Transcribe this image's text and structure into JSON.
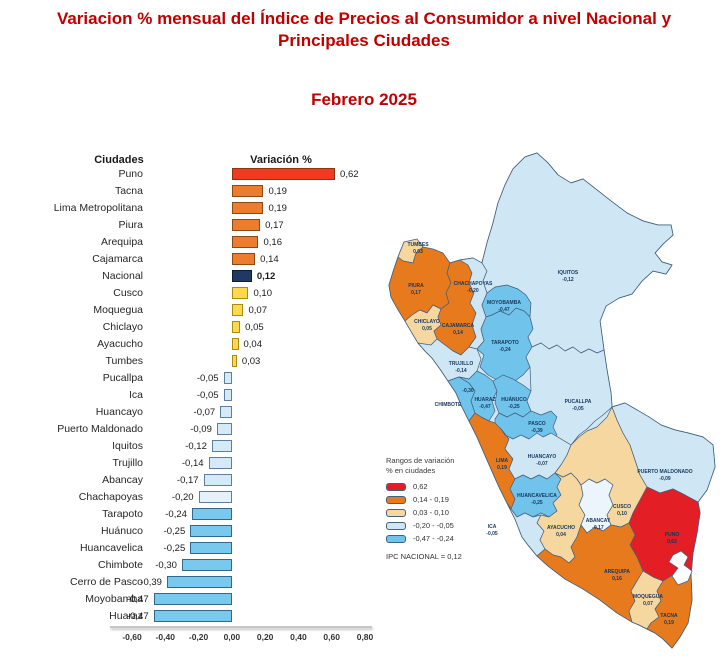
{
  "title": {
    "line1": "Variacion % mensual del Índice de Precios al Consumidor a nivel Nacional y",
    "line2": "Principales Ciudades",
    "subtitle": "Febrero 2025"
  },
  "chart_data": {
    "type": "bar",
    "orientation": "horizontal",
    "title": "Variacion % mensual del Índice de Precios al Consumidor a nivel Nacional y Principales Ciudades — Febrero 2025",
    "col_city_header": "Ciudades",
    "col_value_header": "Variación %",
    "xlim": [
      -0.6,
      0.8
    ],
    "x_ticks": [
      "-0,60",
      "-0,40",
      "-0,20",
      "0,00",
      "0,20",
      "0,40",
      "0,60",
      "0,80"
    ],
    "grid": false,
    "rows": [
      {
        "label": "Puno",
        "value": 0.62,
        "display": "0,62",
        "color": "red",
        "bold": false
      },
      {
        "label": "Tacna",
        "value": 0.19,
        "display": "0,19",
        "color": "orange",
        "bold": false
      },
      {
        "label": "Lima Metropolitana",
        "value": 0.19,
        "display": "0,19",
        "color": "orange",
        "bold": false
      },
      {
        "label": "Piura",
        "value": 0.17,
        "display": "0,17",
        "color": "orange",
        "bold": false
      },
      {
        "label": "Arequipa",
        "value": 0.16,
        "display": "0,16",
        "color": "orange",
        "bold": false
      },
      {
        "label": "Cajamarca",
        "value": 0.14,
        "display": "0,14",
        "color": "orange",
        "bold": false
      },
      {
        "label": "Nacional",
        "value": 0.12,
        "display": "0,12",
        "color": "navy",
        "bold": true
      },
      {
        "label": "Cusco",
        "value": 0.1,
        "display": "0,10",
        "color": "yellow",
        "bold": false
      },
      {
        "label": "Moquegua",
        "value": 0.07,
        "display": "0,07",
        "color": "yellow",
        "bold": false
      },
      {
        "label": "Chiclayo",
        "value": 0.05,
        "display": "0,05",
        "color": "yellow",
        "bold": false
      },
      {
        "label": "Ayacucho",
        "value": 0.04,
        "display": "0,04",
        "color": "yellow",
        "bold": false
      },
      {
        "label": "Tumbes",
        "value": 0.03,
        "display": "0,03",
        "color": "yellow",
        "bold": false
      },
      {
        "label": "Pucallpa",
        "value": -0.05,
        "display": "-0,05",
        "color": "pale",
        "bold": false
      },
      {
        "label": "Ica",
        "value": -0.05,
        "display": "-0,05",
        "color": "pale",
        "bold": false
      },
      {
        "label": "Huancayo",
        "value": -0.07,
        "display": "-0,07",
        "color": "pale",
        "bold": false
      },
      {
        "label": "Puerto Maldonado",
        "value": -0.09,
        "display": "-0,09",
        "color": "pale",
        "bold": false
      },
      {
        "label": "Iquitos",
        "value": -0.12,
        "display": "-0,12",
        "color": "pale",
        "bold": false
      },
      {
        "label": "Trujillo",
        "value": -0.14,
        "display": "-0,14",
        "color": "pale",
        "bold": false
      },
      {
        "label": "Abancay",
        "value": -0.17,
        "display": "-0,17",
        "color": "pale",
        "bold": false
      },
      {
        "label": "Chachapoyas",
        "value": -0.2,
        "display": "-0,20",
        "color": "pale_light",
        "bold": false
      },
      {
        "label": "Tarapoto",
        "value": -0.24,
        "display": "-0,24",
        "color": "sky",
        "bold": false
      },
      {
        "label": "Huánuco",
        "value": -0.25,
        "display": "-0,25",
        "color": "sky",
        "bold": false
      },
      {
        "label": "Huancavelica",
        "value": -0.25,
        "display": "-0,25",
        "color": "sky",
        "bold": false
      },
      {
        "label": "Chimbote",
        "value": -0.3,
        "display": "-0,30",
        "color": "sky",
        "bold": false
      },
      {
        "label": "Cerro de Pasco",
        "value": -0.39,
        "display": "-0,39",
        "color": "sky",
        "bold": false
      },
      {
        "label": "Moyobamba",
        "value": -0.47,
        "display": "-0,47",
        "color": "sky",
        "bold": false
      },
      {
        "label": "Huaraz",
        "value": -0.47,
        "display": "-0,47",
        "color": "sky",
        "bold": false
      }
    ]
  },
  "map": {
    "legend": {
      "title_line1": "Rangos de variación",
      "title_line2": "% en ciudades",
      "items": [
        {
          "label": "0,62",
          "color": "red"
        },
        {
          "label": "0,14  -  0,19",
          "color": "orange"
        },
        {
          "label": "0,03  -  0,10",
          "color": "peach"
        },
        {
          "label": "-0,20  -  -0,05",
          "color": "pale"
        },
        {
          "label": "-0,47  -  -0,24",
          "color": "sky"
        }
      ],
      "footer": "IPC NACIONAL =  0,12"
    },
    "regions": [
      {
        "id": "tumbes",
        "name": "TUMBES",
        "value": "0,03",
        "color": "peach"
      },
      {
        "id": "piura",
        "name": "PIURA",
        "value": "0,17",
        "color": "orange"
      },
      {
        "id": "chiclayo",
        "name": "CHICLAYO",
        "value": "0,05",
        "color": "peach"
      },
      {
        "id": "cajamarca",
        "name": "CAJAMARCA",
        "value": "0,14",
        "color": "orange"
      },
      {
        "id": "chachapoyas",
        "name": "CHACHAPOYAS",
        "value": "-0,20",
        "color": "pale"
      },
      {
        "id": "moyobamba",
        "name": "MOYOBAMBA",
        "value": "-0,47",
        "color": "sky"
      },
      {
        "id": "tarapoto",
        "name": "TARAPOTO",
        "value": "-0,24",
        "color": "sky"
      },
      {
        "id": "iquitos",
        "name": "IQUITOS",
        "value": "-0,12",
        "color": "pale"
      },
      {
        "id": "trujillo",
        "name": "TRUJILLO",
        "value": "-0,14",
        "color": "pale"
      },
      {
        "id": "chimbote",
        "name": "CHIMBOTE",
        "value": "-0,30",
        "color": "sky"
      },
      {
        "id": "huaraz",
        "name": "HUARAZ",
        "value": "-0,47",
        "color": "sky"
      },
      {
        "id": "huanuco",
        "name": "HUÁNUCO",
        "value": "-0,25",
        "color": "sky"
      },
      {
        "id": "pucallpa",
        "name": "PUCALLPA",
        "value": "-0,05",
        "color": "pale"
      },
      {
        "id": "pasco",
        "name": "PASCO",
        "value": "-0,39",
        "color": "sky"
      },
      {
        "id": "lima",
        "name": "LIMA",
        "value": "0,19",
        "color": "orange"
      },
      {
        "id": "huancayo",
        "name": "HUANCAYO",
        "value": "-0,07",
        "color": "pale"
      },
      {
        "id": "huancavelica",
        "name": "HUANCAVELICA",
        "value": "-0,25",
        "color": "sky"
      },
      {
        "id": "ica",
        "name": "ICA",
        "value": "-0,05",
        "color": "pale"
      },
      {
        "id": "ayacucho",
        "name": "AYACUCHO",
        "value": "0,04",
        "color": "peach"
      },
      {
        "id": "abancay",
        "name": "ABANCAY",
        "value": "-0,17",
        "color": "white_blue"
      },
      {
        "id": "cusco",
        "name": "CUSCO",
        "value": "0,10",
        "color": "peach"
      },
      {
        "id": "pm",
        "name": "PUERTO MALDONADO",
        "value": "-0,09",
        "color": "pale"
      },
      {
        "id": "puno",
        "name": "PUNO",
        "value": "0,62",
        "color": "red"
      },
      {
        "id": "arequipa",
        "name": "AREQUIPA",
        "value": "0,16",
        "color": "orange"
      },
      {
        "id": "moquegua",
        "name": "MOQUEGUA",
        "value": "0,07",
        "color": "peach"
      },
      {
        "id": "tacna",
        "name": "TACNA",
        "value": "0,19",
        "color": "orange"
      }
    ]
  },
  "colors": {
    "title_red": "#C00000",
    "bar": {
      "red": {
        "fill": "#F03B22",
        "border": "#8C3310"
      },
      "orange": {
        "fill": "#ED7D2E",
        "border": "#8C4A10"
      },
      "navy": {
        "fill": "#1F3864",
        "border": "#0D1B33"
      },
      "yellow": {
        "fill": "#FFD94B",
        "border": "#A98A12"
      },
      "pale": {
        "fill": "#D4EAF7",
        "border": "#5D7F9E"
      },
      "pale_light": {
        "fill": "#E3F2FB",
        "border": "#5D7F9E"
      },
      "sky": {
        "fill": "#79C9EE",
        "border": "#33678C"
      }
    },
    "map": {
      "red": "#E31E25",
      "orange": "#E87A1E",
      "peach": "#F6D7A0",
      "pale": "#CFE7F5",
      "sky": "#70C3EA",
      "white_blue": "#ECF5FB",
      "stroke": "#43607D",
      "label": "#16365C"
    }
  }
}
